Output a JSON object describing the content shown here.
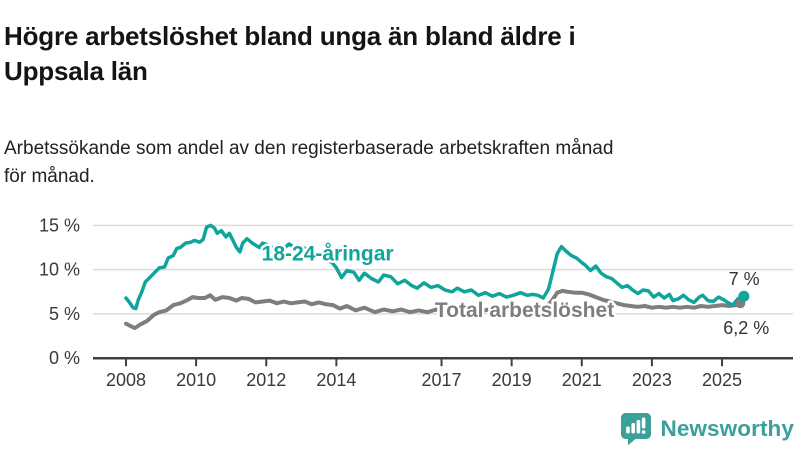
{
  "header": {
    "title": "Högre arbetslöshet bland unga än bland äldre i\nUppsala län",
    "subtitle": "Arbetssökande som andel av den registerbaserade arbetskraften månad\nför månad."
  },
  "chart_data": {
    "type": "line",
    "title": "Högre arbetslöshet bland unga än bland äldre i Uppsala län",
    "xlabel": "",
    "ylabel": "",
    "unit": "%",
    "grid": true,
    "legend_position": "inline-labels",
    "xlim": [
      2007.6,
      2026.0
    ],
    "ylim": [
      0,
      16
    ],
    "yticks": [
      {
        "value": 0,
        "label": "0 %"
      },
      {
        "value": 5,
        "label": "5 %"
      },
      {
        "value": 10,
        "label": "10 %"
      },
      {
        "value": 15,
        "label": "15 %"
      }
    ],
    "xticks": [
      {
        "value": 2008,
        "label": "2008"
      },
      {
        "value": 2010,
        "label": "2010"
      },
      {
        "value": 2012,
        "label": "2012"
      },
      {
        "value": 2014,
        "label": "2014"
      },
      {
        "value": 2017,
        "label": "2017"
      },
      {
        "value": 2019,
        "label": "2019"
      },
      {
        "value": 2021,
        "label": "2021"
      },
      {
        "value": 2023,
        "label": "2023"
      },
      {
        "value": 2025,
        "label": "2025"
      }
    ],
    "series": [
      {
        "name": "Total arbetslöshet",
        "color": "#7e7e7e",
        "line_width": 4,
        "end_value": 6.2,
        "end_label": "6,2 %",
        "points": [
          [
            2008.0,
            3.9
          ],
          [
            2008.1,
            3.7
          ],
          [
            2008.25,
            3.4
          ],
          [
            2008.4,
            3.8
          ],
          [
            2008.5,
            4.0
          ],
          [
            2008.6,
            4.2
          ],
          [
            2008.8,
            4.9
          ],
          [
            2008.95,
            5.2
          ],
          [
            2009.15,
            5.4
          ],
          [
            2009.35,
            6.0
          ],
          [
            2009.55,
            6.2
          ],
          [
            2009.72,
            6.5
          ],
          [
            2009.9,
            6.9
          ],
          [
            2010.05,
            6.8
          ],
          [
            2010.25,
            6.8
          ],
          [
            2010.4,
            7.1
          ],
          [
            2010.55,
            6.6
          ],
          [
            2010.75,
            6.9
          ],
          [
            2010.95,
            6.8
          ],
          [
            2011.15,
            6.5
          ],
          [
            2011.3,
            6.8
          ],
          [
            2011.5,
            6.7
          ],
          [
            2011.7,
            6.3
          ],
          [
            2011.9,
            6.4
          ],
          [
            2012.1,
            6.5
          ],
          [
            2012.3,
            6.2
          ],
          [
            2012.5,
            6.4
          ],
          [
            2012.7,
            6.2
          ],
          [
            2012.9,
            6.3
          ],
          [
            2013.1,
            6.4
          ],
          [
            2013.3,
            6.1
          ],
          [
            2013.5,
            6.3
          ],
          [
            2013.7,
            6.1
          ],
          [
            2013.9,
            6.0
          ],
          [
            2014.1,
            5.6
          ],
          [
            2014.3,
            5.9
          ],
          [
            2014.55,
            5.4
          ],
          [
            2014.8,
            5.7
          ],
          [
            2015.1,
            5.2
          ],
          [
            2015.35,
            5.5
          ],
          [
            2015.6,
            5.3
          ],
          [
            2015.85,
            5.5
          ],
          [
            2016.1,
            5.2
          ],
          [
            2016.35,
            5.4
          ],
          [
            2016.6,
            5.2
          ],
          [
            2016.85,
            5.5
          ],
          [
            2017.1,
            5.2
          ],
          [
            2017.35,
            5.4
          ],
          [
            2017.6,
            5.3
          ],
          [
            2017.85,
            5.5
          ],
          [
            2018.1,
            5.3
          ],
          [
            2018.35,
            5.5
          ],
          [
            2018.6,
            5.3
          ],
          [
            2018.85,
            5.5
          ],
          [
            2019.1,
            5.3
          ],
          [
            2019.35,
            5.5
          ],
          [
            2019.6,
            5.4
          ],
          [
            2019.85,
            5.6
          ],
          [
            2020.0,
            5.8
          ],
          [
            2020.15,
            6.5
          ],
          [
            2020.3,
            7.4
          ],
          [
            2020.45,
            7.6
          ],
          [
            2020.6,
            7.5
          ],
          [
            2020.8,
            7.4
          ],
          [
            2021.0,
            7.4
          ],
          [
            2021.2,
            7.2
          ],
          [
            2021.4,
            6.9
          ],
          [
            2021.6,
            6.6
          ],
          [
            2021.8,
            6.4
          ],
          [
            2022.0,
            6.2
          ],
          [
            2022.2,
            6.0
          ],
          [
            2022.4,
            5.9
          ],
          [
            2022.6,
            5.8
          ],
          [
            2022.8,
            5.9
          ],
          [
            2023.0,
            5.7
          ],
          [
            2023.2,
            5.8
          ],
          [
            2023.4,
            5.7
          ],
          [
            2023.6,
            5.8
          ],
          [
            2023.8,
            5.7
          ],
          [
            2024.0,
            5.8
          ],
          [
            2024.2,
            5.7
          ],
          [
            2024.4,
            5.9
          ],
          [
            2024.6,
            5.8
          ],
          [
            2024.8,
            5.9
          ],
          [
            2025.0,
            6.0
          ],
          [
            2025.2,
            5.9
          ],
          [
            2025.4,
            6.0
          ],
          [
            2025.58,
            6.2
          ]
        ]
      },
      {
        "name": "18-24-åringar",
        "color": "#10a59b",
        "line_width": 3.5,
        "end_value": 7.0,
        "end_label": "7 %",
        "points": [
          [
            2008.0,
            6.8
          ],
          [
            2008.1,
            6.3
          ],
          [
            2008.2,
            5.7
          ],
          [
            2008.28,
            5.6
          ],
          [
            2008.35,
            6.6
          ],
          [
            2008.45,
            7.5
          ],
          [
            2008.55,
            8.6
          ],
          [
            2008.65,
            9.0
          ],
          [
            2008.8,
            9.6
          ],
          [
            2008.95,
            10.2
          ],
          [
            2009.1,
            10.3
          ],
          [
            2009.2,
            11.3
          ],
          [
            2009.35,
            11.6
          ],
          [
            2009.45,
            12.4
          ],
          [
            2009.55,
            12.5
          ],
          [
            2009.7,
            13.0
          ],
          [
            2009.85,
            13.1
          ],
          [
            2009.95,
            13.3
          ],
          [
            2010.1,
            13.1
          ],
          [
            2010.2,
            13.4
          ],
          [
            2010.3,
            14.8
          ],
          [
            2010.42,
            15.0
          ],
          [
            2010.52,
            14.7
          ],
          [
            2010.6,
            14.1
          ],
          [
            2010.72,
            14.4
          ],
          [
            2010.85,
            13.7
          ],
          [
            2010.95,
            14.1
          ],
          [
            2011.05,
            13.3
          ],
          [
            2011.15,
            12.5
          ],
          [
            2011.25,
            12.0
          ],
          [
            2011.33,
            13.0
          ],
          [
            2011.45,
            13.5
          ],
          [
            2011.6,
            13.0
          ],
          [
            2011.8,
            12.5
          ],
          [
            2011.9,
            13.0
          ],
          [
            2012.05,
            12.8
          ],
          [
            2012.2,
            12.4
          ],
          [
            2012.35,
            12.8
          ],
          [
            2012.5,
            12.4
          ],
          [
            2012.65,
            12.9
          ],
          [
            2012.8,
            12.5
          ],
          [
            2012.95,
            12.7
          ],
          [
            2013.15,
            12.3
          ],
          [
            2013.35,
            12.0
          ],
          [
            2013.55,
            11.6
          ],
          [
            2013.75,
            11.2
          ],
          [
            2013.9,
            10.7
          ],
          [
            2014.0,
            10.2
          ],
          [
            2014.15,
            9.1
          ],
          [
            2014.3,
            9.9
          ],
          [
            2014.5,
            9.7
          ],
          [
            2014.65,
            8.8
          ],
          [
            2014.8,
            9.6
          ],
          [
            2015.0,
            9.0
          ],
          [
            2015.2,
            8.6
          ],
          [
            2015.35,
            9.4
          ],
          [
            2015.55,
            9.2
          ],
          [
            2015.75,
            8.4
          ],
          [
            2015.95,
            8.8
          ],
          [
            2016.15,
            8.2
          ],
          [
            2016.3,
            7.9
          ],
          [
            2016.5,
            8.5
          ],
          [
            2016.7,
            8.0
          ],
          [
            2016.9,
            8.2
          ],
          [
            2017.1,
            7.7
          ],
          [
            2017.3,
            7.5
          ],
          [
            2017.45,
            7.9
          ],
          [
            2017.65,
            7.5
          ],
          [
            2017.85,
            7.7
          ],
          [
            2018.05,
            7.1
          ],
          [
            2018.25,
            7.4
          ],
          [
            2018.45,
            7.0
          ],
          [
            2018.65,
            7.3
          ],
          [
            2018.85,
            6.9
          ],
          [
            2019.05,
            7.1
          ],
          [
            2019.25,
            7.4
          ],
          [
            2019.45,
            7.1
          ],
          [
            2019.6,
            7.2
          ],
          [
            2019.75,
            7.1
          ],
          [
            2019.9,
            6.8
          ],
          [
            2020.05,
            7.8
          ],
          [
            2020.15,
            9.4
          ],
          [
            2020.3,
            11.8
          ],
          [
            2020.42,
            12.6
          ],
          [
            2020.55,
            12.1
          ],
          [
            2020.7,
            11.6
          ],
          [
            2020.85,
            11.3
          ],
          [
            2021.0,
            10.8
          ],
          [
            2021.1,
            10.5
          ],
          [
            2021.25,
            9.9
          ],
          [
            2021.4,
            10.4
          ],
          [
            2021.55,
            9.6
          ],
          [
            2021.7,
            9.2
          ],
          [
            2021.85,
            9.0
          ],
          [
            2022.0,
            8.5
          ],
          [
            2022.15,
            8.0
          ],
          [
            2022.3,
            8.2
          ],
          [
            2022.45,
            7.7
          ],
          [
            2022.6,
            7.3
          ],
          [
            2022.75,
            7.7
          ],
          [
            2022.9,
            7.6
          ],
          [
            2023.05,
            6.9
          ],
          [
            2023.2,
            7.3
          ],
          [
            2023.35,
            6.8
          ],
          [
            2023.5,
            7.2
          ],
          [
            2023.6,
            6.5
          ],
          [
            2023.75,
            6.7
          ],
          [
            2023.9,
            7.1
          ],
          [
            2024.05,
            6.6
          ],
          [
            2024.2,
            6.3
          ],
          [
            2024.35,
            6.9
          ],
          [
            2024.45,
            7.1
          ],
          [
            2024.6,
            6.5
          ],
          [
            2024.75,
            6.4
          ],
          [
            2024.9,
            6.9
          ],
          [
            2025.05,
            6.6
          ],
          [
            2025.2,
            6.2
          ],
          [
            2025.3,
            6.0
          ],
          [
            2025.45,
            6.7
          ],
          [
            2025.58,
            7.0
          ]
        ]
      }
    ],
    "annotations": [
      {
        "text": "18-24-åringar",
        "x": 2011.87,
        "y": 11.85,
        "anchor": "start",
        "size": 21,
        "bold": true,
        "color": "#10a59b",
        "halo": true
      },
      {
        "text": "Total arbetslöshet",
        "x": 2016.81,
        "y": 5.45,
        "anchor": "start",
        "size": 21,
        "bold": true,
        "color": "#7e7e7e",
        "halo": true
      },
      {
        "text": "7 %",
        "x": 2025.63,
        "y": 8.85,
        "anchor": "middle",
        "size": 18,
        "bold": false,
        "color": "#333333",
        "halo": false
      },
      {
        "text": "6,2 %",
        "x": 2025.69,
        "y": 3.3,
        "anchor": "middle",
        "size": 18,
        "bold": false,
        "color": "#333333",
        "halo": false
      }
    ],
    "colors": {
      "grid": "#dcdcdc",
      "axis": "#3f3f3f",
      "tick_label": "#3a3a3a"
    }
  },
  "footer": {
    "brand": "Newsworthy",
    "brand_color": "#3aa099",
    "logo_icon": "bar-chart-speech-bubble-icon"
  }
}
